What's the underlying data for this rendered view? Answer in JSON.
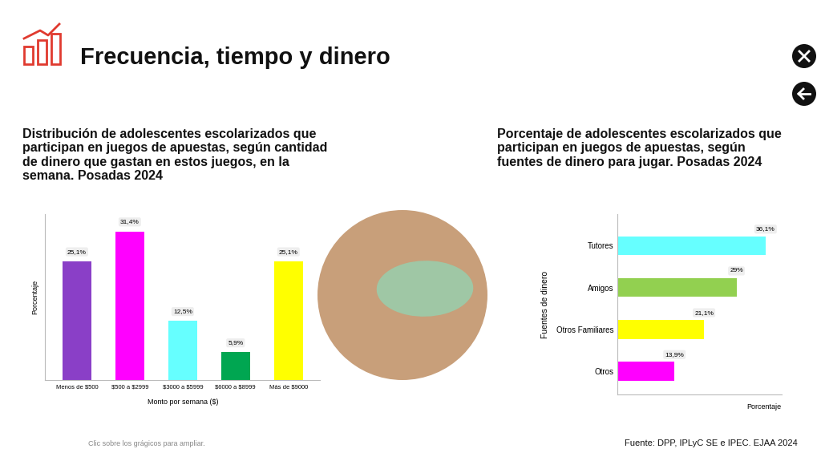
{
  "title": "Frecuencia, tiempo y dinero",
  "chart_data": [
    {
      "type": "bar",
      "title": "Distribución de adolescentes escolarizados que participan en juegos de apuestas, según cantidad de dinero que gastan en estos juegos, en la semana. Posadas 2024",
      "x_label": "Monto por semana ($)",
      "y_label": "Porcentaje",
      "categories": [
        "Menos de $500",
        "$500 a $2999",
        "$3000 a $5999",
        "$6000 a $8999",
        "Más de $9000"
      ],
      "values": [
        25.1,
        31.4,
        12.5,
        5.9,
        25.1
      ],
      "value_labels": [
        "25,1%",
        "31,4%",
        "12,5%",
        "5,9%",
        "25,1%"
      ],
      "colors": [
        "#8a3fc7",
        "#ff00ff",
        "#66ffff",
        "#00a651",
        "#ffff00"
      ],
      "ylim": [
        0,
        35
      ],
      "data_labels": true,
      "tick_labels": "x"
    },
    {
      "type": "bar",
      "orientation": "horizontal",
      "title": "Porcentaje de adolescentes escolarizados que participan en juegos de apuestas, según fuentes de dinero para jugar. Posadas 2024",
      "x_label": "Porcentaje",
      "y_label": "Fuentes de dinero",
      "categories": [
        "Tutores",
        "Amigos",
        "Otros Familiares",
        "Otros"
      ],
      "values": [
        36.1,
        29,
        21.1,
        13.9
      ],
      "value_labels": [
        "36,1%",
        "29%",
        "21,1%",
        "13,9%"
      ],
      "colors": [
        "#66ffff",
        "#92d050",
        "#ffff00",
        "#ff00ff"
      ],
      "xlim": [
        0,
        40
      ],
      "data_labels": true,
      "tick_labels": "y"
    }
  ],
  "note": "Clic sobre los grágicos para ampliar.",
  "source": "Fuente: DPP, IPLyC SE e IPEC. EJAA 2024"
}
